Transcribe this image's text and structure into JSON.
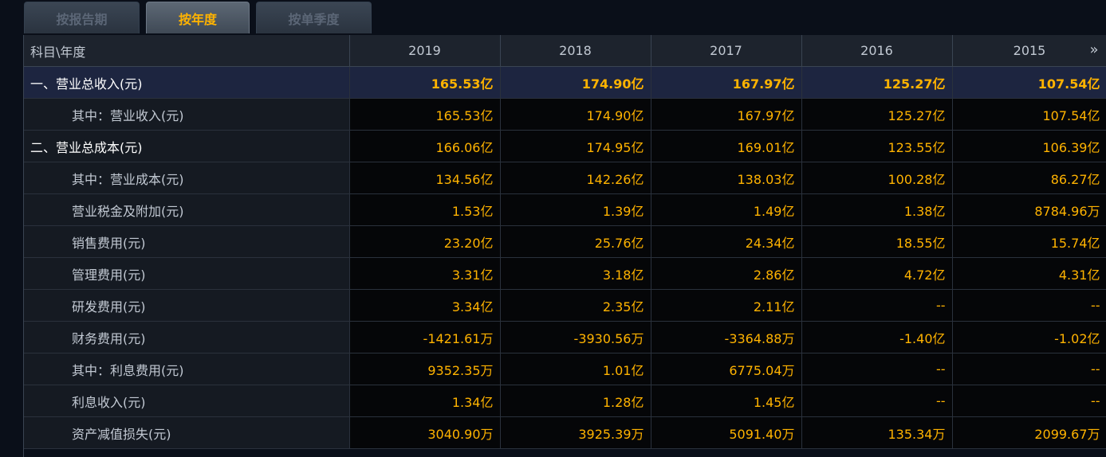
{
  "tabs": [
    {
      "label": "按报告期",
      "active": false
    },
    {
      "label": "按年度",
      "active": true
    },
    {
      "label": "按单季度",
      "active": false
    }
  ],
  "table": {
    "header_label": "科目\\年度",
    "years": [
      "2019",
      "2018",
      "2017",
      "2016",
      "2015"
    ],
    "more_icon": "»",
    "rows": [
      {
        "label": "一、营业总收入(元)",
        "type": "highlight",
        "values": [
          "165.53亿",
          "174.90亿",
          "167.97亿",
          "125.27亿",
          "107.54亿"
        ]
      },
      {
        "label": "其中：营业收入(元)",
        "type": "sub",
        "values": [
          "165.53亿",
          "174.90亿",
          "167.97亿",
          "125.27亿",
          "107.54亿"
        ]
      },
      {
        "label": "二、营业总成本(元)",
        "type": "section",
        "values": [
          "166.06亿",
          "174.95亿",
          "169.01亿",
          "123.55亿",
          "106.39亿"
        ]
      },
      {
        "label": "其中：营业成本(元)",
        "type": "sub",
        "values": [
          "134.56亿",
          "142.26亿",
          "138.03亿",
          "100.28亿",
          "86.27亿"
        ]
      },
      {
        "label": "营业税金及附加(元)",
        "type": "sub",
        "values": [
          "1.53亿",
          "1.39亿",
          "1.49亿",
          "1.38亿",
          "8784.96万"
        ]
      },
      {
        "label": "销售费用(元)",
        "type": "sub",
        "values": [
          "23.20亿",
          "25.76亿",
          "24.34亿",
          "18.55亿",
          "15.74亿"
        ]
      },
      {
        "label": "管理费用(元)",
        "type": "sub",
        "values": [
          "3.31亿",
          "3.18亿",
          "2.86亿",
          "4.72亿",
          "4.31亿"
        ]
      },
      {
        "label": "研发费用(元)",
        "type": "sub",
        "values": [
          "3.34亿",
          "2.35亿",
          "2.11亿",
          "--",
          "--"
        ]
      },
      {
        "label": "财务费用(元)",
        "type": "sub",
        "values": [
          "-1421.61万",
          "-3930.56万",
          "-3364.88万",
          "-1.40亿",
          "-1.02亿"
        ]
      },
      {
        "label": "其中：利息费用(元)",
        "type": "sub",
        "values": [
          "9352.35万",
          "1.01亿",
          "6775.04万",
          "--",
          "--"
        ]
      },
      {
        "label": "利息收入(元)",
        "type": "sub",
        "values": [
          "1.34亿",
          "1.28亿",
          "1.45亿",
          "--",
          "--"
        ]
      },
      {
        "label": "资产减值损失(元)",
        "type": "sub",
        "values": [
          "3040.90万",
          "3925.39万",
          "5091.40万",
          "135.34万",
          "2099.67万"
        ]
      }
    ]
  },
  "colors": {
    "accent": "#ffb300",
    "label": "#c2c9d3",
    "background": "#0a0f19",
    "highlight_row": "#1d2540"
  }
}
